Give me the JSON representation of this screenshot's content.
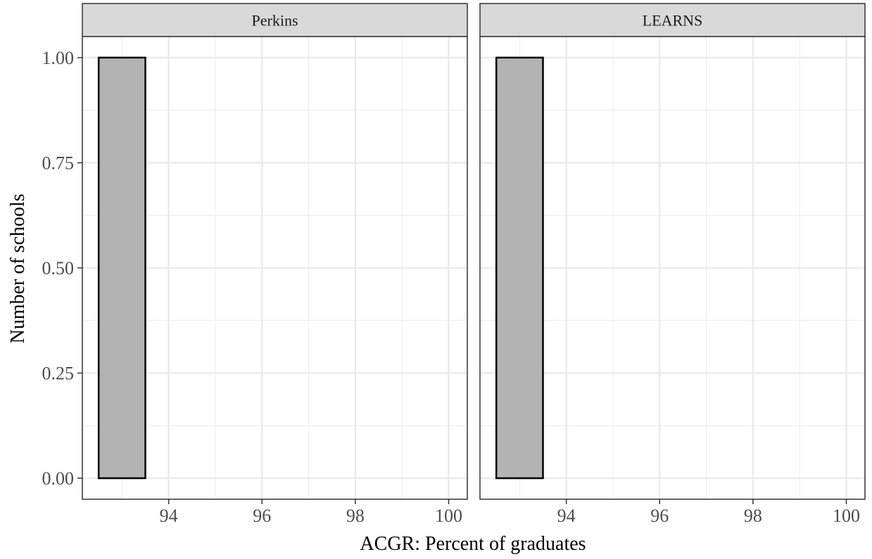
{
  "chart_data": {
    "type": "bar",
    "subtype": "faceted histogram",
    "xlabel": "ACGR: Percent of graduates",
    "ylabel": "Number of schools",
    "xlim": [
      92.15,
      100.4
    ],
    "ylim": [
      -0.05,
      1.05
    ],
    "x_ticks": [
      {
        "value": 94,
        "label": "94"
      },
      {
        "value": 96,
        "label": "96"
      },
      {
        "value": 98,
        "label": "98"
      },
      {
        "value": 100,
        "label": "100"
      }
    ],
    "y_ticks": [
      {
        "value": 0,
        "label": "0.00"
      },
      {
        "value": 0.25,
        "label": "0.25"
      },
      {
        "value": 0.5,
        "label": "0.50"
      },
      {
        "value": 0.75,
        "label": "0.75"
      },
      {
        "value": 1,
        "label": "1.00"
      }
    ],
    "grid": true,
    "bar_fill": "#b3b3b3",
    "bar_stroke": "#000000",
    "strip_fill": "#d9d9d9",
    "gridline_color": "#ebebeb",
    "facets": [
      {
        "label": "Perkins",
        "bins": [
          {
            "x_min": 92.5,
            "x_max": 93.5,
            "count": 1
          }
        ]
      },
      {
        "label": "LEARNS",
        "bins": [
          {
            "x_min": 92.5,
            "x_max": 93.5,
            "count": 1
          }
        ]
      }
    ]
  }
}
